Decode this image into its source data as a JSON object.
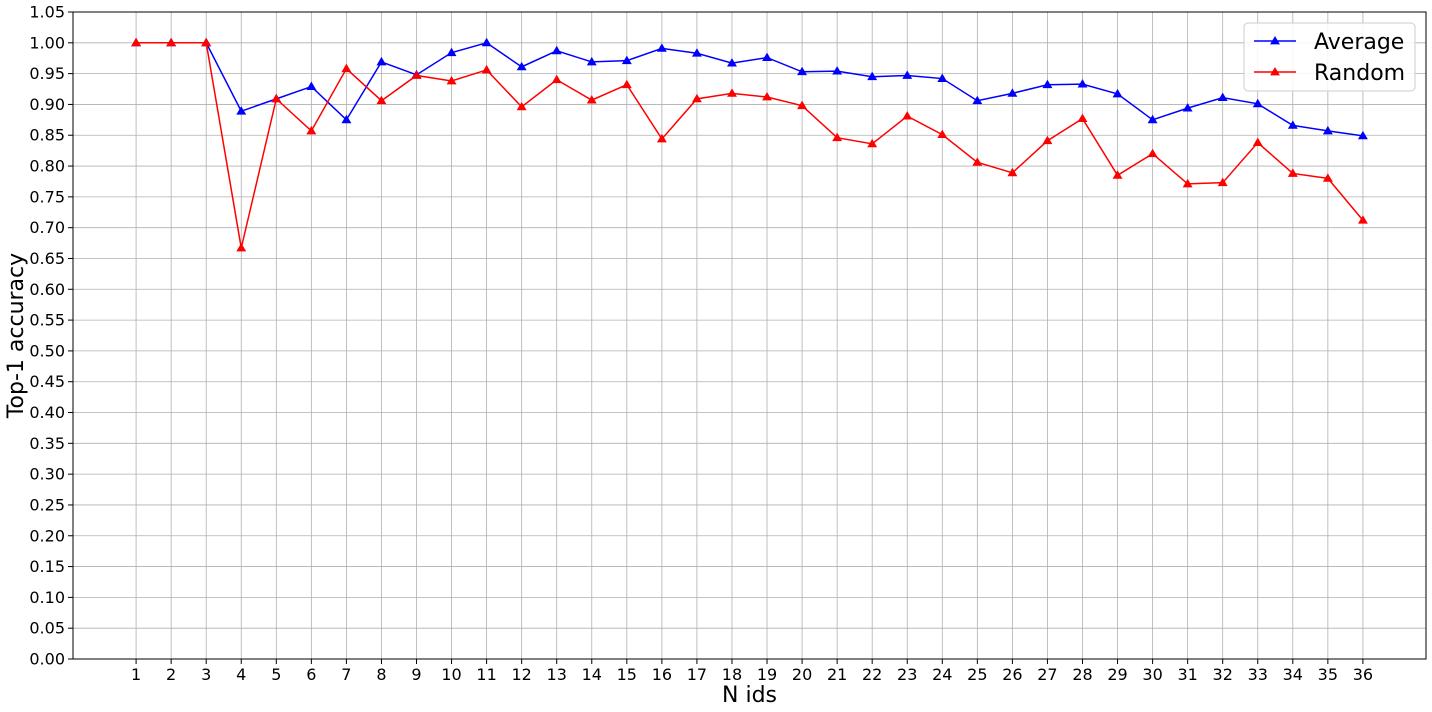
{
  "chart_data": {
    "type": "line",
    "title": "",
    "xlabel": "N ids",
    "ylabel": "Top-1 accuracy",
    "x": [
      1,
      2,
      3,
      4,
      5,
      6,
      7,
      8,
      9,
      10,
      11,
      12,
      13,
      14,
      15,
      16,
      17,
      18,
      19,
      20,
      21,
      22,
      23,
      24,
      25,
      26,
      27,
      28,
      29,
      30,
      31,
      32,
      33,
      34,
      35,
      36
    ],
    "xlim": [
      -0.8,
      37.8
    ],
    "ylim": [
      0,
      1.05
    ],
    "yticks": [
      "0.00",
      "0.05",
      "0.10",
      "0.15",
      "0.20",
      "0.25",
      "0.30",
      "0.35",
      "0.40",
      "0.45",
      "0.50",
      "0.55",
      "0.60",
      "0.65",
      "0.70",
      "0.75",
      "0.80",
      "0.85",
      "0.90",
      "0.95",
      "1.00",
      "1.05"
    ],
    "grid": true,
    "legend_position": "top-right",
    "series": [
      {
        "name": "Average",
        "color": "#0000ff",
        "marker": "triangle",
        "values": [
          1.0,
          1.0,
          1.0,
          0.889,
          0.909,
          0.929,
          0.875,
          0.969,
          0.948,
          0.984,
          1.0,
          0.961,
          0.987,
          0.969,
          0.971,
          0.991,
          0.983,
          0.967,
          0.976,
          0.953,
          0.954,
          0.945,
          0.947,
          0.942,
          0.906,
          0.918,
          0.932,
          0.933,
          0.917,
          0.875,
          0.894,
          0.911,
          0.901,
          0.866,
          0.857,
          0.849
        ]
      },
      {
        "name": "Random",
        "color": "#ff0000",
        "marker": "triangle",
        "values": [
          1.0,
          1.0,
          1.0,
          0.667,
          0.909,
          0.857,
          0.958,
          0.906,
          0.947,
          0.938,
          0.956,
          0.896,
          0.94,
          0.907,
          0.932,
          0.844,
          0.909,
          0.918,
          0.912,
          0.898,
          0.846,
          0.836,
          0.881,
          0.851,
          0.806,
          0.789,
          0.841,
          0.877,
          0.785,
          0.82,
          0.771,
          0.773,
          0.838,
          0.788,
          0.78,
          0.712
        ]
      }
    ]
  }
}
